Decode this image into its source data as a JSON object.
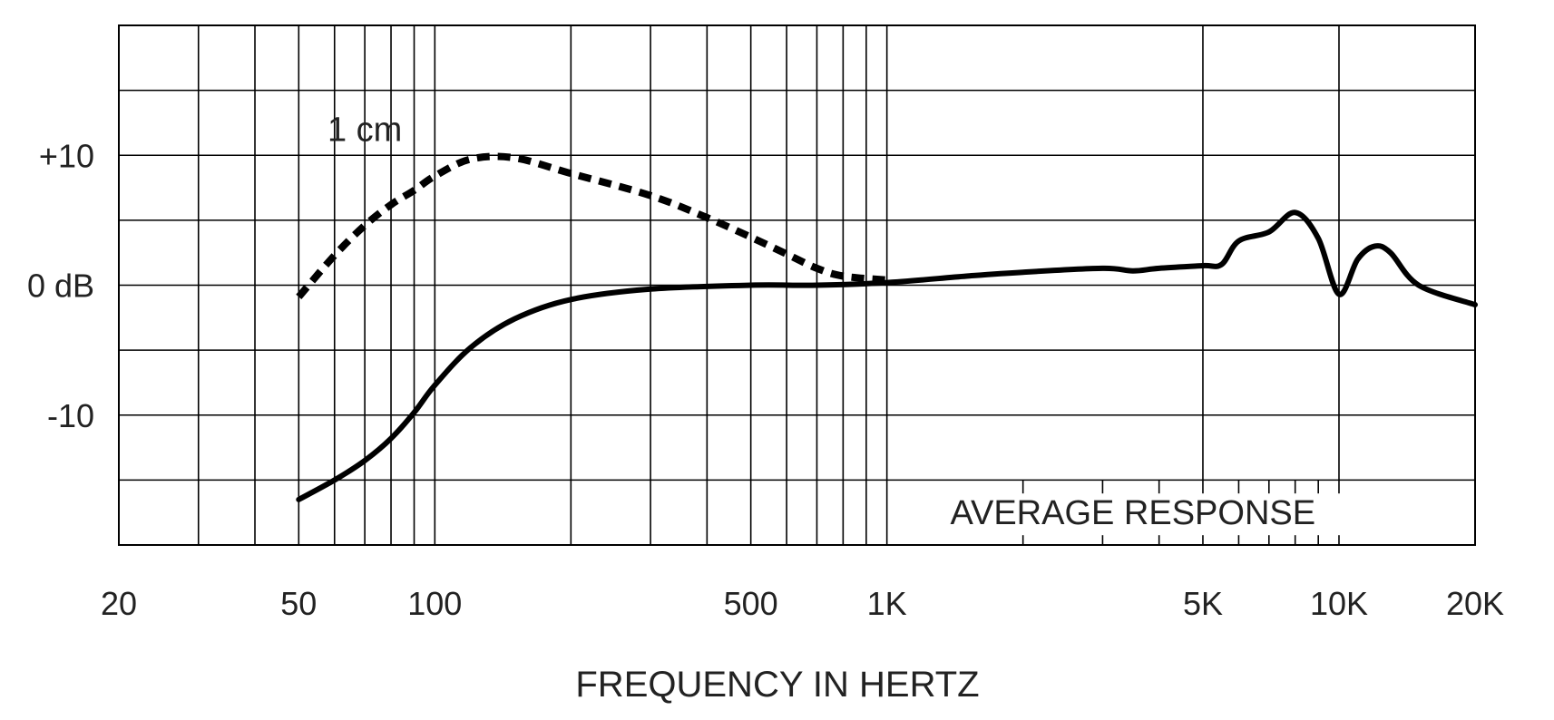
{
  "chart_data": {
    "type": "line",
    "title": "",
    "xlabel": "FREQUENCY IN HERTZ",
    "ylabel": "",
    "x_scale": "log",
    "xlim": [
      20,
      20000
    ],
    "ylim": [
      -20,
      20
    ],
    "grid": true,
    "x_ticks": [
      {
        "value": 20,
        "label": "20"
      },
      {
        "value": 50,
        "label": "50"
      },
      {
        "value": 100,
        "label": "100"
      },
      {
        "value": 500,
        "label": "500"
      },
      {
        "value": 1000,
        "label": "1K"
      },
      {
        "value": 5000,
        "label": "5K"
      },
      {
        "value": 10000,
        "label": "10K"
      },
      {
        "value": 20000,
        "label": "20K"
      }
    ],
    "y_ticks": [
      {
        "value": 10,
        "label": "+10"
      },
      {
        "value": 0,
        "label": "0 dB"
      },
      {
        "value": -10,
        "label": "-10"
      }
    ],
    "annotations": [
      {
        "text": "1 cm",
        "x": 70,
        "y": 12
      },
      {
        "text": "AVERAGE RESPONSE",
        "x": 3500,
        "y": -17.5
      }
    ],
    "series": [
      {
        "name": "",
        "style": "solid",
        "x": [
          50,
          60,
          70,
          80,
          90,
          100,
          120,
          150,
          200,
          300,
          500,
          700,
          1000,
          1500,
          2000,
          3000,
          3500,
          4000,
          5000,
          5500,
          6000,
          7000,
          8000,
          9000,
          10000,
          11000,
          12000,
          13000,
          15000,
          20000
        ],
        "y": [
          -16.5,
          -15,
          -13.5,
          -11.8,
          -9.8,
          -7.7,
          -4.8,
          -2.6,
          -1.1,
          -0.3,
          0,
          0,
          0.2,
          0.7,
          1,
          1.3,
          1.1,
          1.3,
          1.5,
          1.6,
          3.4,
          4.1,
          5.6,
          3.6,
          -0.7,
          2,
          3,
          2.5,
          0,
          -1.5
        ]
      },
      {
        "name": "1 cm",
        "style": "dotted",
        "x": [
          50,
          60,
          70,
          80,
          90,
          100,
          120,
          150,
          200,
          300,
          400,
          500,
          600,
          700,
          800,
          1000
        ],
        "y": [
          -0.9,
          2.3,
          4.6,
          6.2,
          7.3,
          8.4,
          9.7,
          9.8,
          8.6,
          6.9,
          5.2,
          3.7,
          2.4,
          1.3,
          0.7,
          0.4
        ]
      }
    ]
  }
}
